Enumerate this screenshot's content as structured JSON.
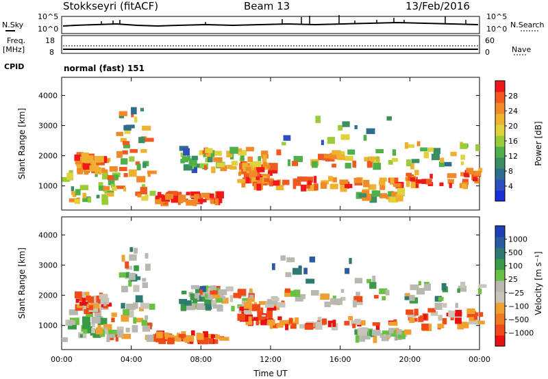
{
  "header": {
    "station": "Stokkseyri (fitACF)",
    "beam": "Beam 13",
    "date": "13/Feb/2016"
  },
  "strip": {
    "nsky_label": "N.Sky",
    "nsky_ticks": [
      "10^5",
      "10^0"
    ],
    "nsearch_label": "N.Search",
    "nsearch_ticks": [
      "10^5",
      "10^0"
    ],
    "freq_label": "Freq.",
    "freq_unit": "[MHz]",
    "freq_ticks": [
      "18",
      "8"
    ],
    "nave_label": "Nave",
    "nave_ticks": [
      "60",
      "0"
    ],
    "cpid_label": "CPID",
    "cpid_value": "normal (fast) 151"
  },
  "colors": {
    "power_scale": [
      "#1a2fd6",
      "#2d4fc0",
      "#2f6d8f",
      "#3c8d62",
      "#4fb04a",
      "#9acc3a",
      "#e0d23a",
      "#f0b030",
      "#f08a28",
      "#f05a20",
      "#f01818"
    ],
    "velocity_scale": [
      "#1f3fb8",
      "#2a5aa0",
      "#2f7a70",
      "#3a9a48",
      "#6ac040",
      "#b8b8b0",
      "#c8c4b8",
      "#f0a030",
      "#f07a20",
      "#f04a18",
      "#e81010"
    ]
  },
  "chart_data": [
    {
      "type": "heatmap",
      "title": "",
      "xlabel": "",
      "ylabel": "Slant Range [km]",
      "ylim": [
        200,
        4600
      ],
      "yticks": [
        "1000",
        "2000",
        "3000",
        "4000"
      ],
      "colorbar_label": "Power [dB]",
      "colorbar_ticks": [
        "4",
        "8",
        "12",
        "16",
        "20",
        "24",
        "28"
      ],
      "colorbar_range": [
        0,
        32
      ]
    },
    {
      "type": "heatmap",
      "title": "",
      "xlabel": "Time UT",
      "ylabel": "Slant Range [km]",
      "ylim": [
        200,
        4600
      ],
      "xticks": [
        "00:00",
        "04:00",
        "08:00",
        "12:00",
        "16:00",
        "20:00",
        "00:00"
      ],
      "yticks": [
        "1000",
        "2000",
        "3000",
        "4000"
      ],
      "colorbar_label": "Velocity [m s⁻¹]",
      "colorbar_ticks": [
        "1000",
        "500",
        "100",
        "25",
        "−25",
        "−100",
        "−500",
        "−1000"
      ]
    }
  ]
}
